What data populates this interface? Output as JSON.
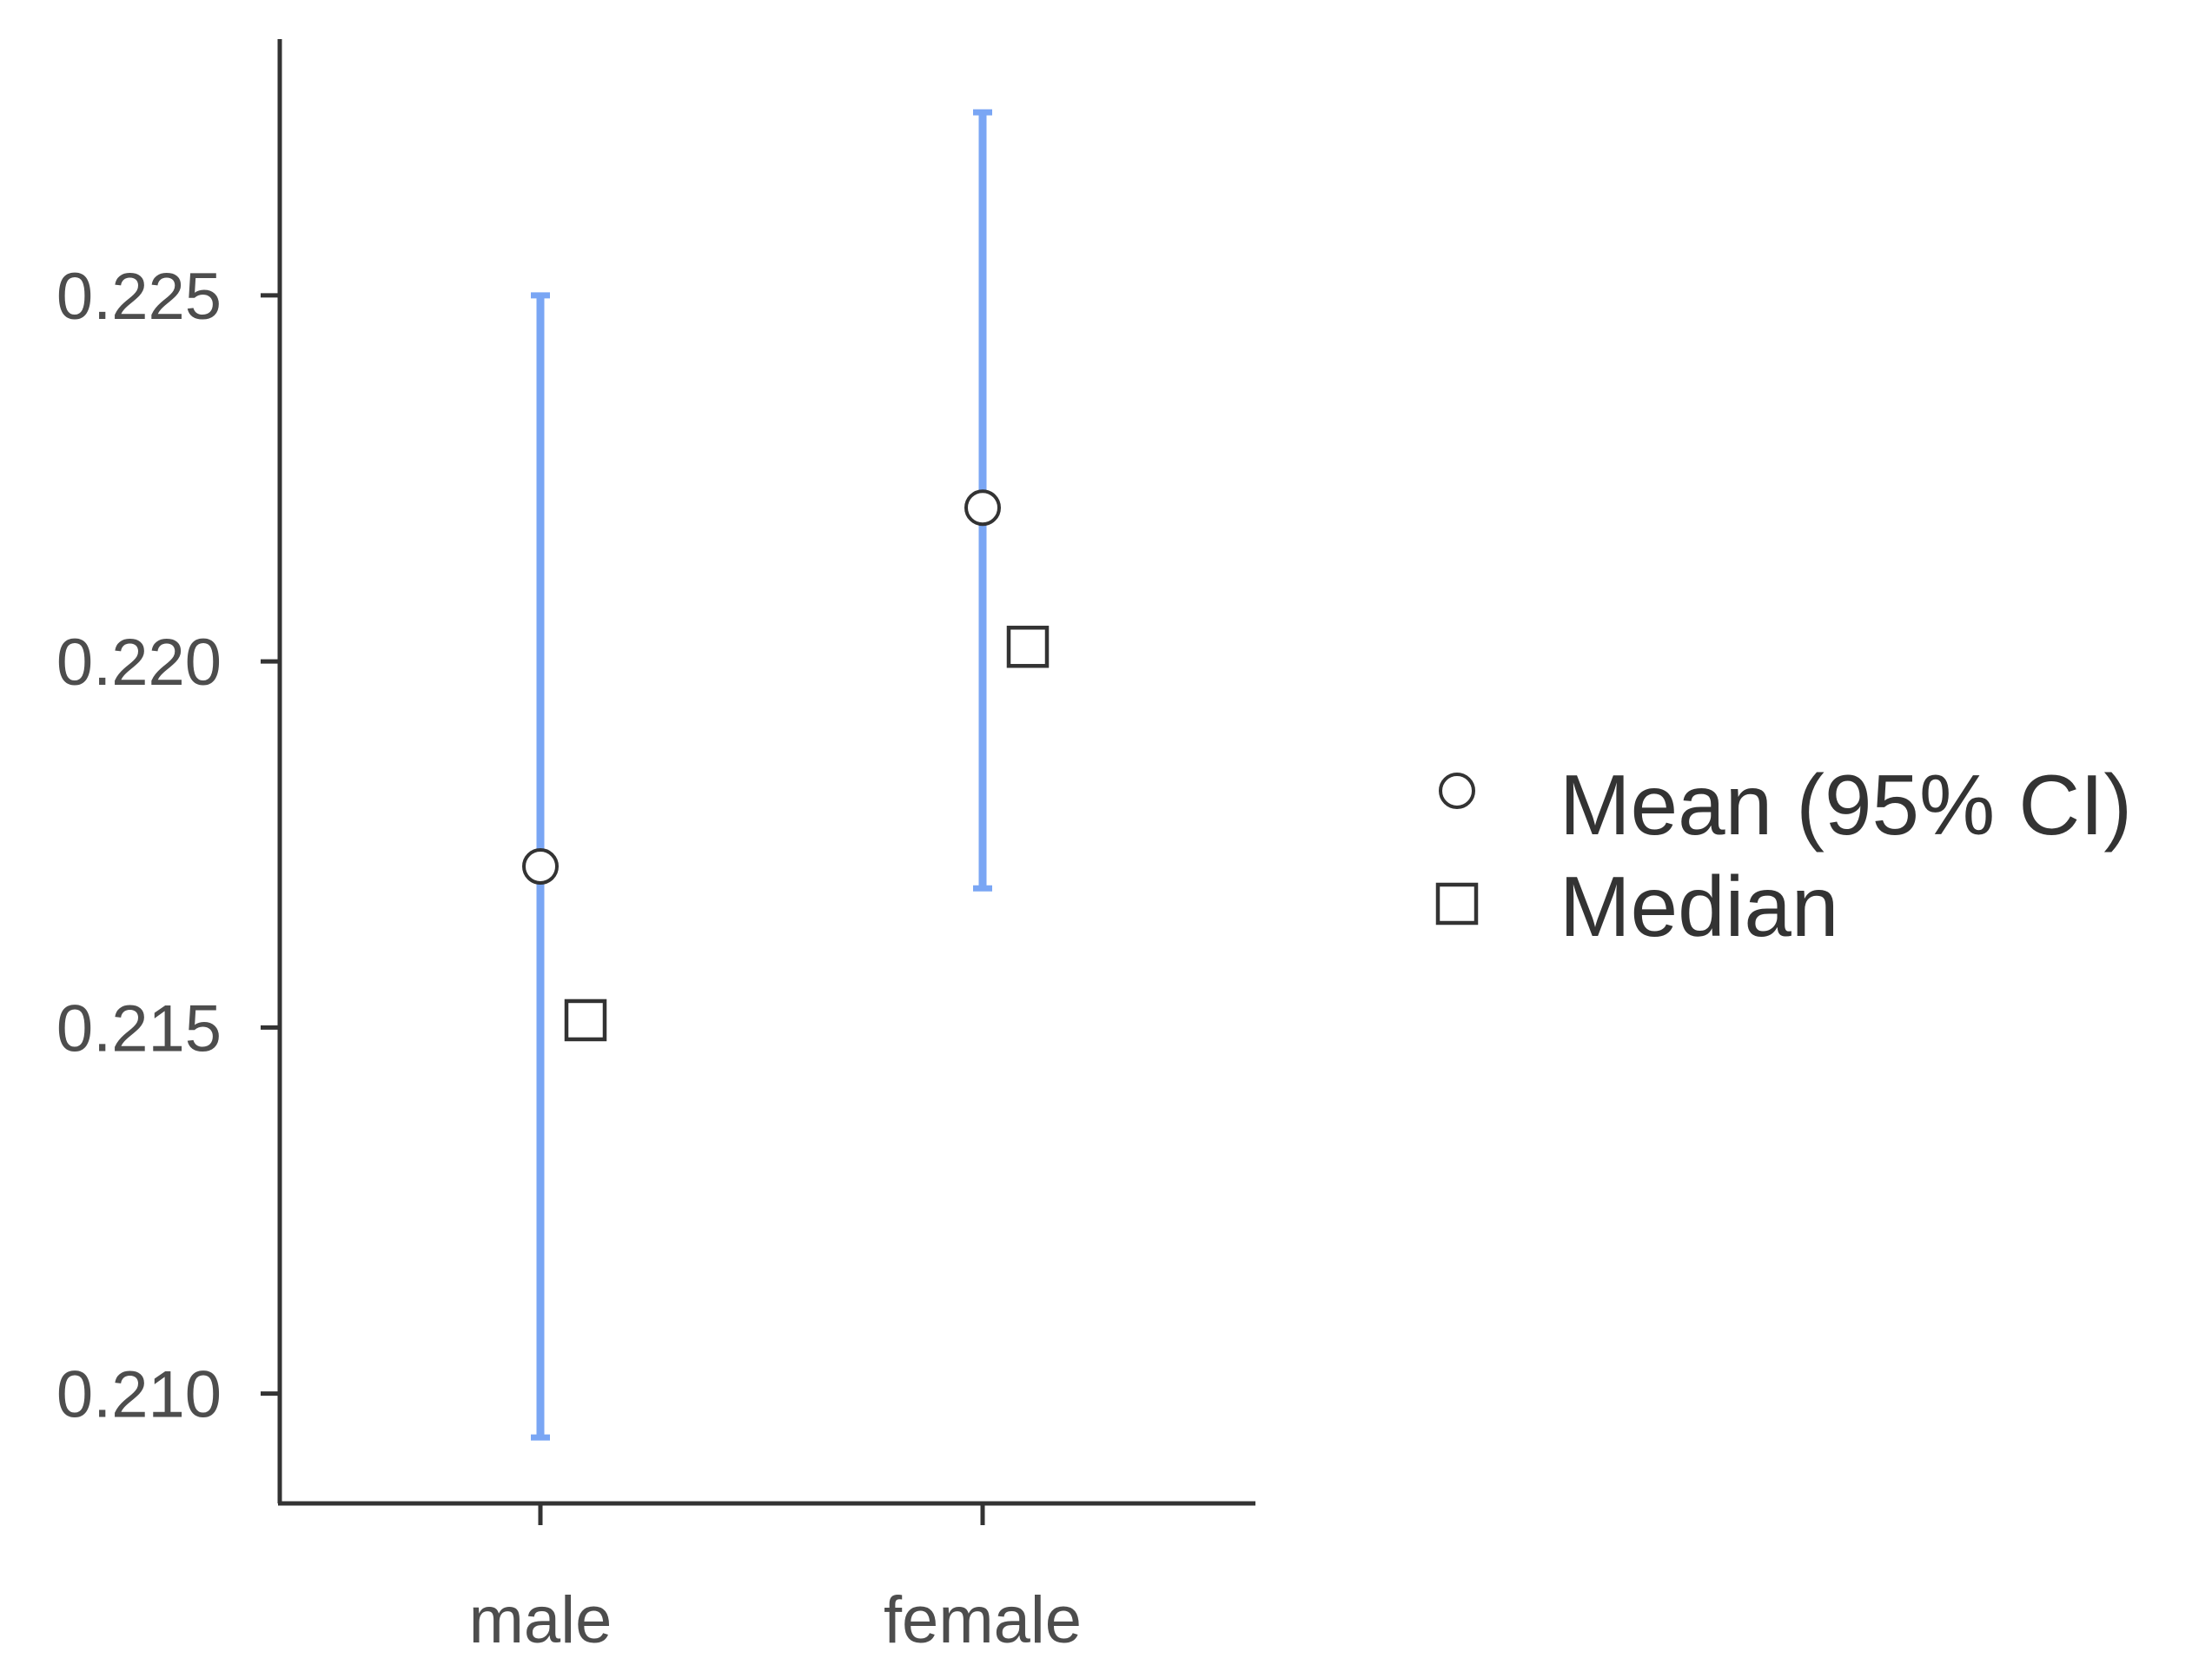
{
  "chart_data": {
    "type": "scatter",
    "title": "",
    "xlabel": "",
    "ylabel": "",
    "categories": [
      "male",
      "female"
    ],
    "ylim": [
      0.2085,
      0.2285
    ],
    "yticks": [
      0.21,
      0.215,
      0.22,
      0.225
    ],
    "ytick_labels": [
      "0.210",
      "0.215",
      "0.220",
      "0.225"
    ],
    "grid": false,
    "legend_position": "right",
    "series": [
      {
        "name": "Mean (95% CI)",
        "marker": "circle",
        "values": [
          0.2172,
          0.2221
        ],
        "ci_lower": [
          0.2094,
          0.2169
        ],
        "ci_upper": [
          0.225,
          0.2275
        ]
      },
      {
        "name": "Median",
        "marker": "square",
        "values": [
          0.2151,
          0.2202
        ]
      }
    ],
    "colors": {
      "errorbar": "#7aa6f4",
      "axis": "#333333",
      "marker_stroke": "#333333",
      "marker_fill": "#ffffff",
      "tick_text": "#4d4d4d"
    }
  }
}
